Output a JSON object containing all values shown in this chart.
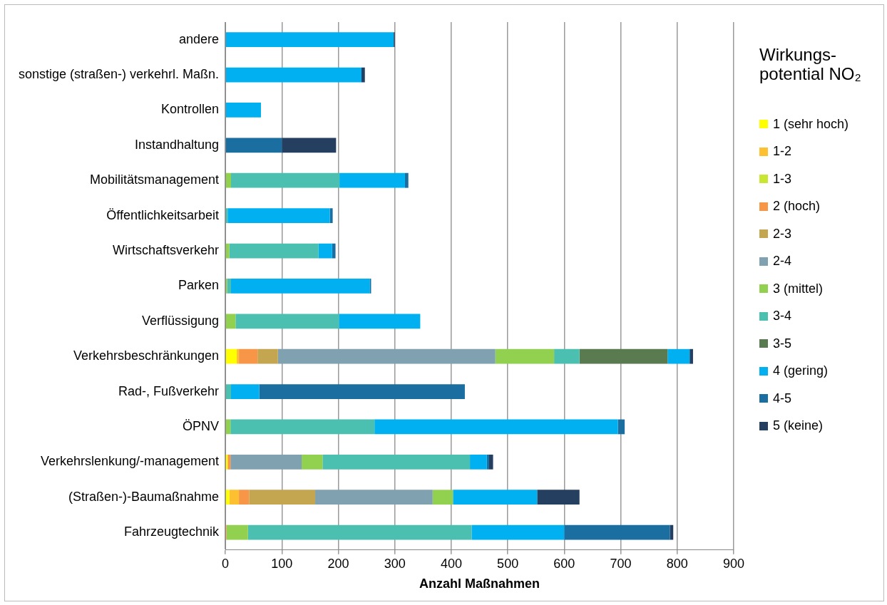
{
  "chart_data": {
    "type": "bar",
    "orientation": "horizontal",
    "stacked": true,
    "categories": [
      "andere",
      "sonstige (straßen-) verkehrl. Maßn.",
      "Kontrollen",
      "Instandhaltung",
      "Mobilitätsmanagement",
      "Öffentlichkeitsarbeit",
      "Wirtschaftsverkehr",
      "Parken",
      "Verflüssigung",
      "Verkehrsbeschränkungen",
      "Rad-, Fußverkehr",
      "ÖPNV",
      "Verkehrslenkung/-management",
      "(Straßen-)-Baumaßnahme",
      "Fahrzeugtechnik"
    ],
    "series": [
      {
        "name": "1 (sehr hoch)",
        "color": "#ffff00",
        "values": [
          null,
          null,
          null,
          null,
          null,
          null,
          null,
          null,
          null,
          20,
          null,
          null,
          4,
          7,
          null
        ]
      },
      {
        "name": "1-2",
        "color": "#fcc030",
        "values": [
          null,
          null,
          null,
          null,
          null,
          null,
          null,
          null,
          null,
          4,
          null,
          null,
          null,
          17,
          null
        ]
      },
      {
        "name": "1-3",
        "color": "#c8e632",
        "values": [
          null,
          null,
          null,
          null,
          null,
          null,
          null,
          null,
          null,
          null,
          null,
          null,
          null,
          null,
          null
        ]
      },
      {
        "name": "2 (hoch)",
        "color": "#f79646",
        "values": [
          null,
          null,
          null,
          null,
          null,
          null,
          null,
          null,
          null,
          33,
          null,
          null,
          5,
          18,
          2
        ]
      },
      {
        "name": "2-3",
        "color": "#c4a550",
        "values": [
          null,
          null,
          null,
          null,
          null,
          null,
          null,
          null,
          null,
          36,
          null,
          null,
          null,
          117,
          null
        ]
      },
      {
        "name": "2-4",
        "color": "#7fa1b0",
        "values": [
          null,
          null,
          null,
          null,
          null,
          null,
          null,
          null,
          null,
          385,
          null,
          null,
          126,
          208,
          null
        ]
      },
      {
        "name": "3 (mittel)",
        "color": "#92d050",
        "values": [
          null,
          null,
          null,
          null,
          10,
          null,
          7,
          3,
          18,
          104,
          null,
          9,
          37,
          36,
          38
        ]
      },
      {
        "name": "3-4",
        "color": "#4cc0b0",
        "values": [
          null,
          null,
          null,
          null,
          192,
          4,
          158,
          7,
          183,
          45,
          10,
          255,
          261,
          null,
          396
        ]
      },
      {
        "name": "3-5",
        "color": "#5a7a50",
        "values": [
          null,
          null,
          null,
          null,
          null,
          null,
          null,
          null,
          null,
          156,
          null,
          null,
          null,
          null,
          null
        ]
      },
      {
        "name": "4 (gering)",
        "color": "#00b0f0",
        "values": [
          298,
          241,
          63,
          null,
          116,
          181,
          24,
          246,
          144,
          39,
          50,
          431,
          30,
          149,
          164
        ]
      },
      {
        "name": "4-5",
        "color": "#1a6ea0",
        "values": [
          null,
          null,
          null,
          100,
          6,
          5,
          6,
          2,
          null,
          null,
          364,
          12,
          4,
          null,
          187
        ]
      },
      {
        "name": "5 (keine)",
        "color": "#243f60",
        "values": [
          2,
          6,
          null,
          96,
          null,
          null,
          null,
          null,
          null,
          6,
          null,
          null,
          7,
          75,
          6
        ]
      }
    ],
    "xlim": [
      0,
      900
    ],
    "xticks": [
      0,
      100,
      200,
      300,
      400,
      500,
      600,
      700,
      800,
      900
    ],
    "xlabel": "Anzahl Maßnahmen",
    "legend_title": "Wirkungs-potential NO₂",
    "legend": "right",
    "grid": "x"
  }
}
